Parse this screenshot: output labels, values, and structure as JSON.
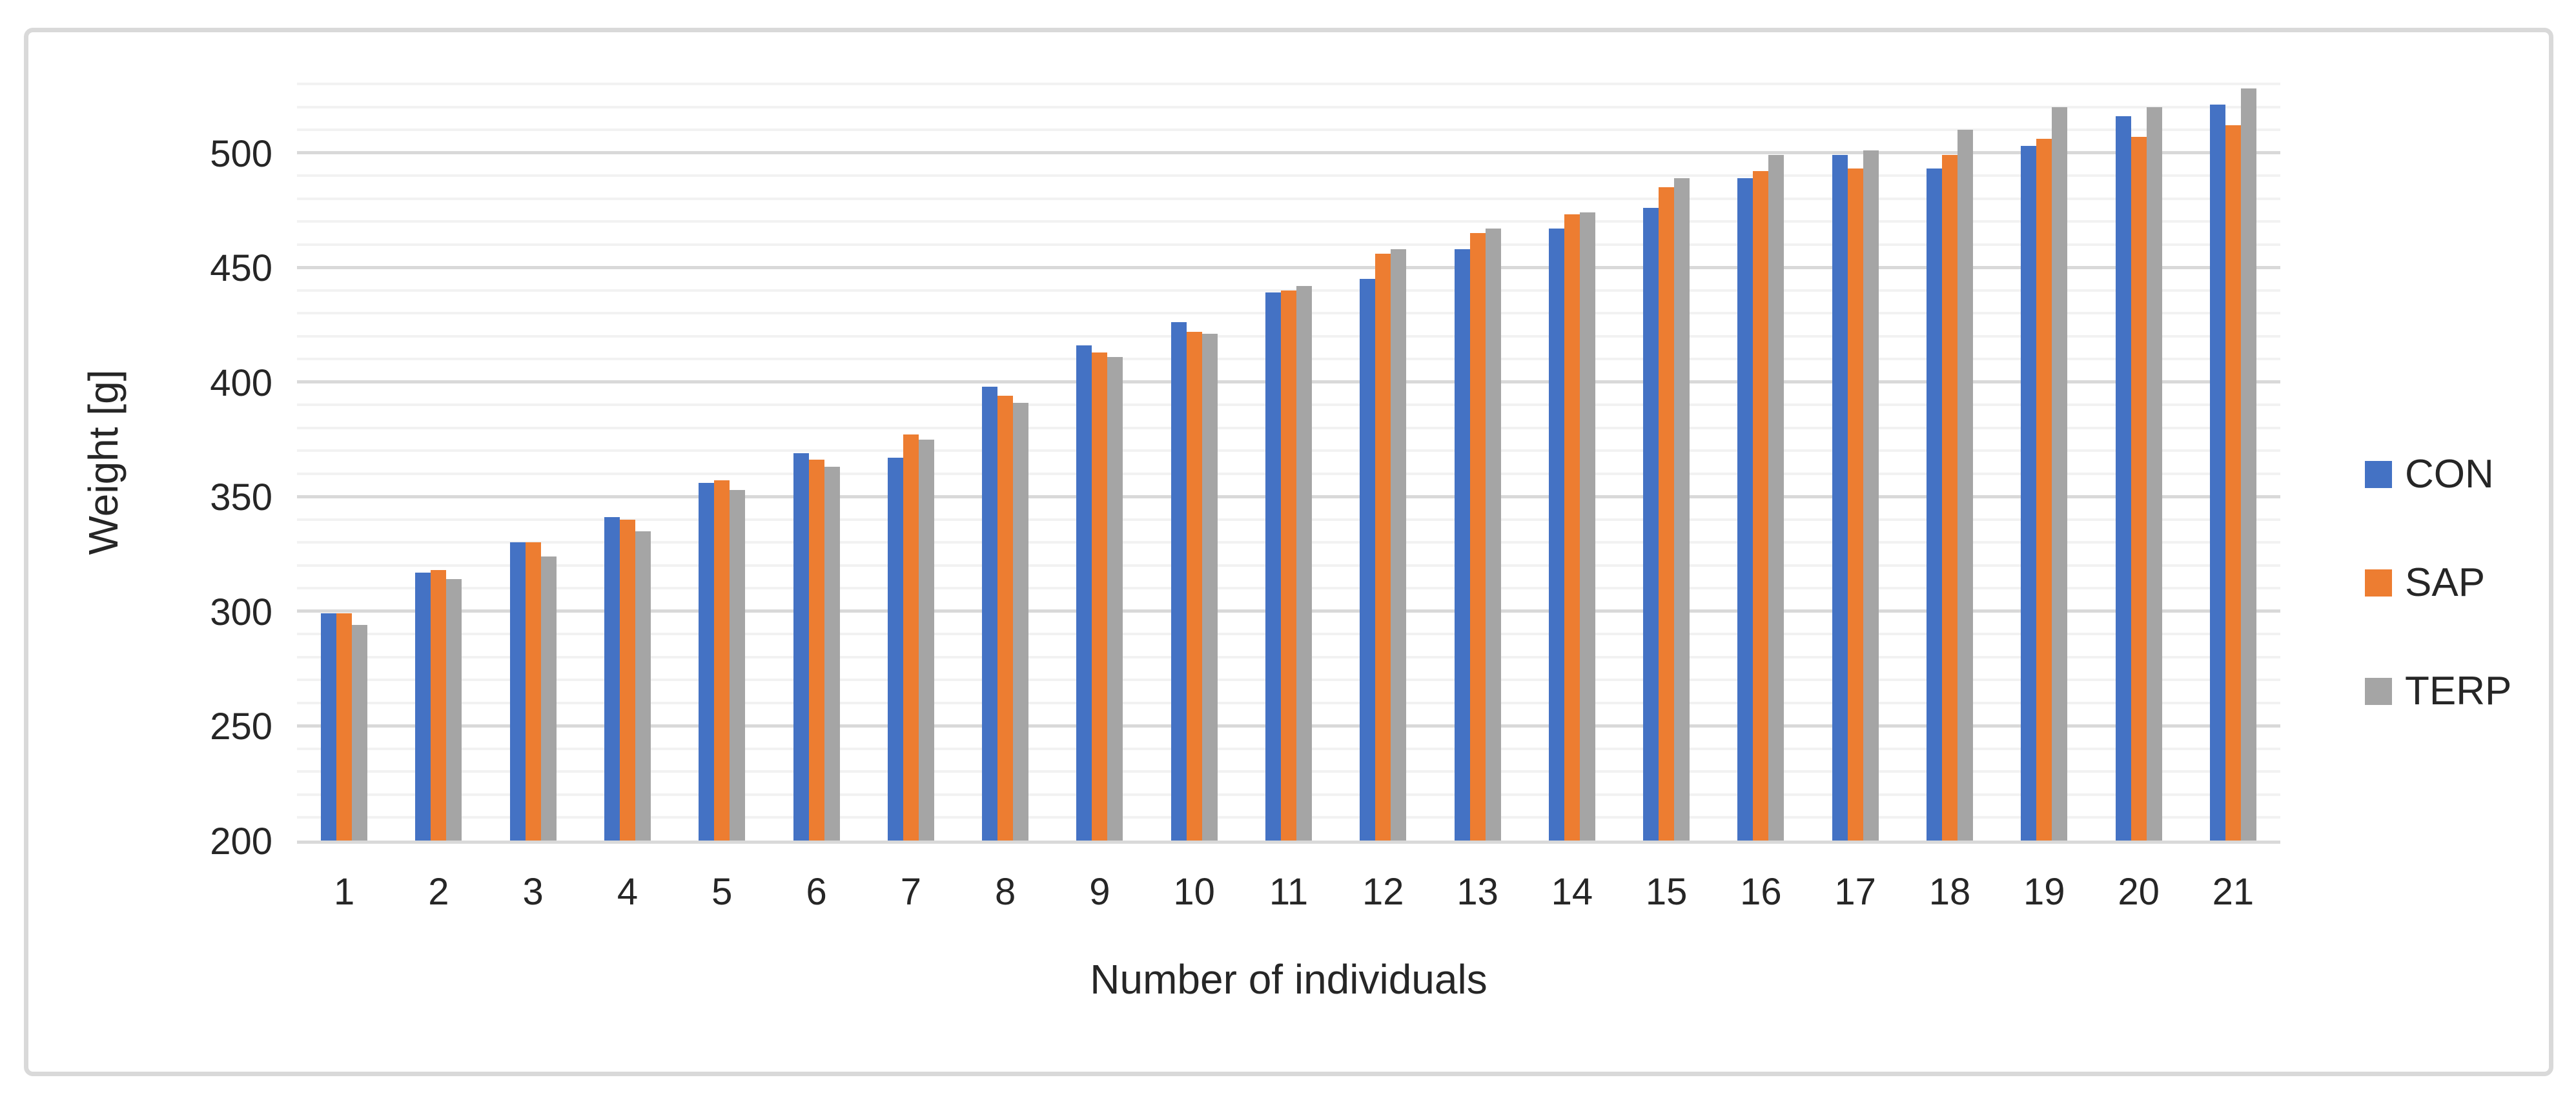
{
  "figure": {
    "background": "#FFFFFF",
    "border_color": "#D9D9D9"
  },
  "axes": {
    "y_title": "Weight [g]",
    "x_title": "Number of individuals",
    "text_color": "#262626",
    "minor_grid_color": "#F2F2F2",
    "major_grid_color": "#D9D9D9",
    "axis_line_color": "#D9D9D9"
  },
  "legend": {
    "position": "right",
    "items": [
      {
        "label": "CON",
        "color": "#4472C4"
      },
      {
        "label": "SAP",
        "color": "#ED7D31"
      },
      {
        "label": "TERP",
        "color": "#A5A5A5"
      }
    ]
  },
  "chart_data": {
    "type": "bar",
    "title": "",
    "xlabel": "Number of individuals",
    "ylabel": "Weight [g]",
    "categories": [
      1,
      2,
      3,
      4,
      5,
      6,
      7,
      8,
      9,
      10,
      11,
      12,
      13,
      14,
      15,
      16,
      17,
      18,
      19,
      20,
      21
    ],
    "series": [
      {
        "name": "CON",
        "color": "#4472C4",
        "values": [
          299,
          317,
          330,
          341,
          356,
          369,
          367,
          398,
          416,
          426,
          439,
          445,
          458,
          467,
          476,
          489,
          499,
          493,
          503,
          516,
          521
        ]
      },
      {
        "name": "SAP",
        "color": "#ED7D31",
        "values": [
          299,
          318,
          330,
          340,
          357,
          366,
          377,
          394,
          413,
          422,
          440,
          456,
          465,
          473,
          485,
          492,
          493,
          499,
          506,
          507,
          512
        ]
      },
      {
        "name": "TERP",
        "color": "#A5A5A5",
        "values": [
          294,
          314,
          324,
          335,
          353,
          363,
          375,
          391,
          411,
          421,
          442,
          458,
          467,
          474,
          489,
          499,
          501,
          510,
          520,
          520,
          528
        ]
      }
    ],
    "ylim": [
      200,
      530
    ],
    "yticks": [
      200,
      250,
      300,
      350,
      400,
      450,
      500
    ],
    "major_step": 50,
    "minor_step": 10,
    "grid": true,
    "legend_position": "right"
  }
}
